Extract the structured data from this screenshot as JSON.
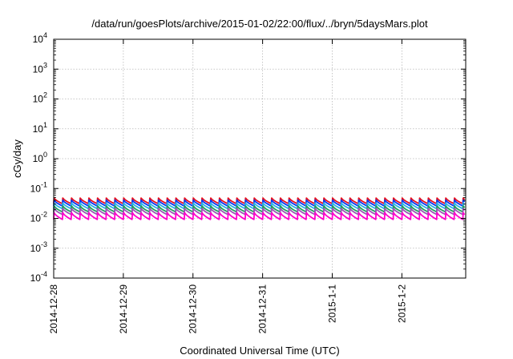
{
  "chart_data": {
    "type": "line",
    "title": "/data/run/goesPlots/archive/2015-01-02/22:00/flux/../bryn/5daysMars.plot",
    "xlabel": "Coordinated Universal Time (UTC)",
    "ylabel": "cGy/day",
    "yscale": "log",
    "ylim": [
      0.0001,
      10000
    ],
    "xlim": [
      "2014-12-28 00:00",
      "2015-01-02 22:00"
    ],
    "y_ticks": [
      {
        "base": "10",
        "exp": "-4"
      },
      {
        "base": "10",
        "exp": "-3"
      },
      {
        "base": "10",
        "exp": "-2"
      },
      {
        "base": "10",
        "exp": "-1"
      },
      {
        "base": "10",
        "exp": "0"
      },
      {
        "base": "10",
        "exp": "1"
      },
      {
        "base": "10",
        "exp": "2"
      },
      {
        "base": "10",
        "exp": "3"
      },
      {
        "base": "10",
        "exp": "4"
      }
    ],
    "x_ticks": [
      "2014-12-28",
      "2014-12-29",
      "2014-12-30",
      "2014-12-31",
      "2015-1-1",
      "2015-1-2"
    ],
    "grid": true,
    "series": [
      {
        "color": "#e8101e",
        "low": 0.031,
        "high": 0.048,
        "period_hours": 3
      },
      {
        "color": "#0a38f0",
        "low": 0.026,
        "high": 0.041,
        "period_hours": 3
      },
      {
        "color": "#2ab3e6",
        "low": 0.021,
        "high": 0.033,
        "period_hours": 3
      },
      {
        "color": "#1e9e5c",
        "low": 0.0165,
        "high": 0.026,
        "period_hours": 3
      },
      {
        "color": "#9b59b6",
        "low": 0.0135,
        "high": 0.0215,
        "period_hours": 3
      },
      {
        "color": "#ff00cc",
        "low": 0.0092,
        "high": 0.0155,
        "period_hours": 3
      }
    ]
  }
}
